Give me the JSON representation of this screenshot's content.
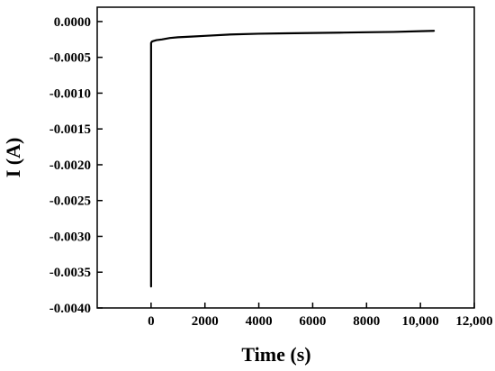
{
  "chart_data": {
    "type": "line",
    "title": "",
    "xlabel": "Time (s)",
    "ylabel": "I (A)",
    "xlim": [
      -2000,
      12000
    ],
    "ylim": [
      -0.004,
      0.0002
    ],
    "x_ticks": [
      0,
      2000,
      4000,
      6000,
      8000,
      10000,
      12000
    ],
    "x_tick_labels": [
      "0",
      "2000",
      "4000",
      "6000",
      "8000",
      "10,000",
      "12,000"
    ],
    "y_ticks": [
      0.0,
      -0.0005,
      -0.001,
      -0.0015,
      -0.002,
      -0.0025,
      -0.003,
      -0.0035,
      -0.004
    ],
    "y_tick_labels": [
      "0.0000",
      "-0.0005",
      "-0.0010",
      "-0.0015",
      "-0.0020",
      "-0.0025",
      "-0.0030",
      "-0.0035",
      "-0.0040"
    ],
    "grid": false,
    "legend": "none",
    "line_color": "#000000",
    "series": [
      {
        "x": [
          0,
          0,
          30,
          100,
          200,
          400,
          700,
          1000,
          1500,
          2000,
          3000,
          4000,
          5000,
          6000,
          7000,
          8000,
          9000,
          10000,
          10500
        ],
        "y": [
          -0.0037,
          -0.0003,
          -0.00028,
          -0.00027,
          -0.00026,
          -0.00025,
          -0.00023,
          -0.00022,
          -0.00021,
          -0.0002,
          -0.00018,
          -0.00017,
          -0.000165,
          -0.00016,
          -0.000155,
          -0.00015,
          -0.000145,
          -0.000135,
          -0.00013
        ]
      }
    ]
  }
}
